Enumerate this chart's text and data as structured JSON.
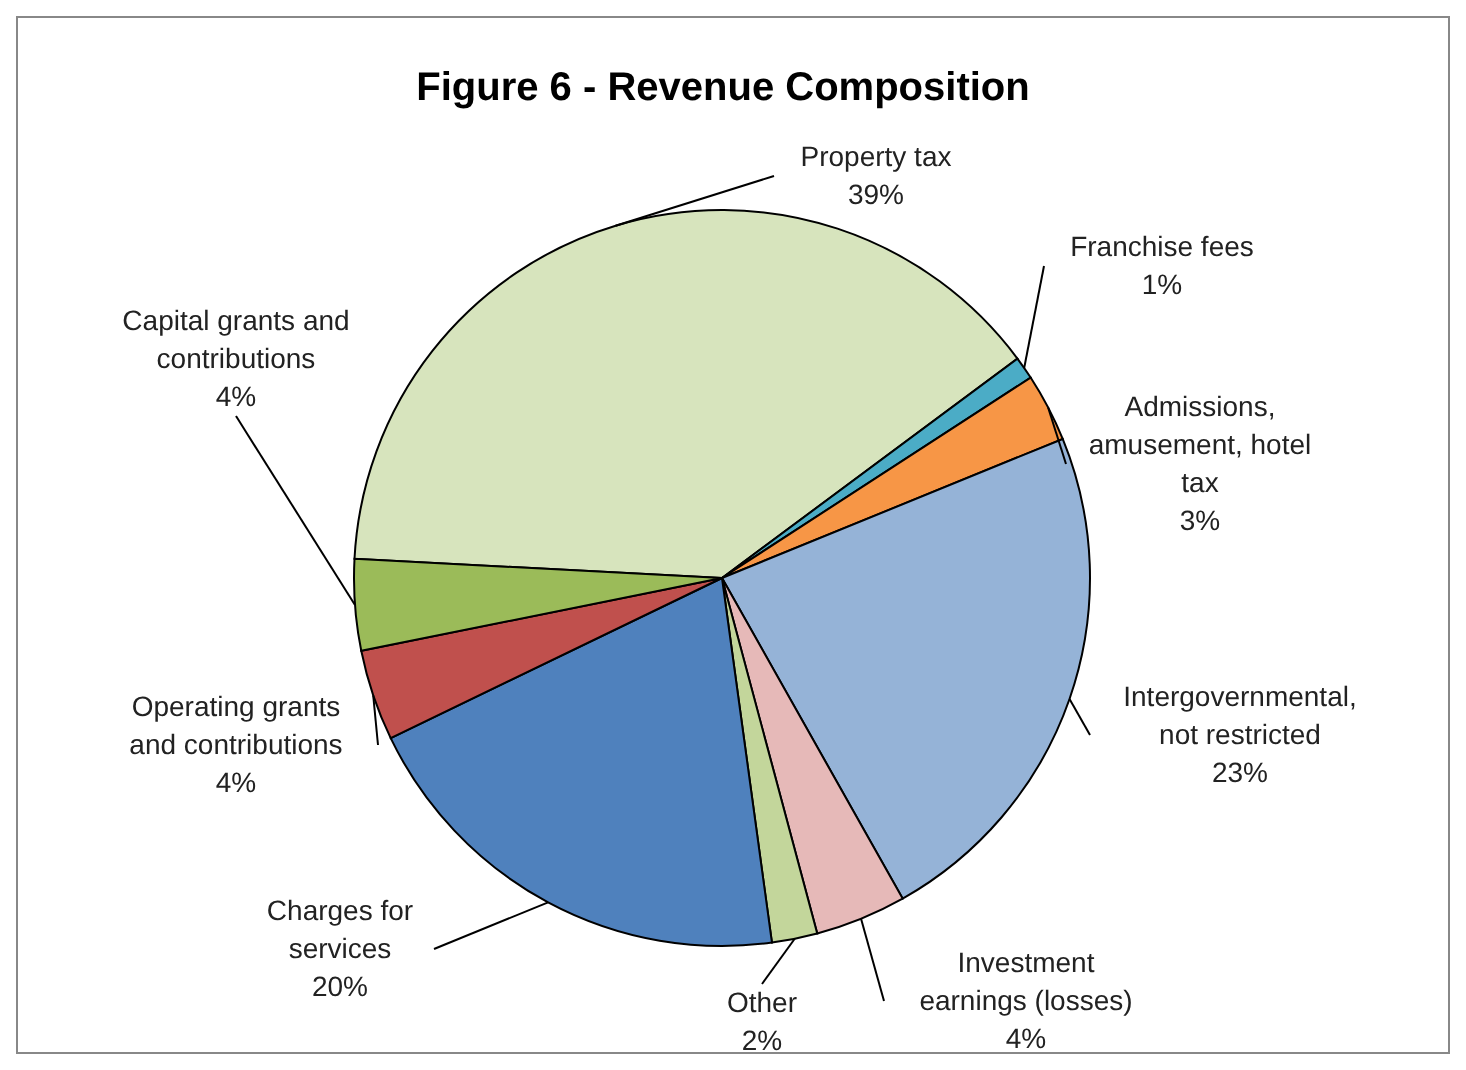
{
  "chart_data": {
    "type": "pie",
    "title": "Figure 6 - Revenue Composition",
    "categories": [
      "Property tax",
      "Franchise fees",
      "Admissions, amusement, hotel tax",
      "Intergovernmental, not restricted",
      "Investment earnings (losses)",
      "Other",
      "Charges for services",
      "Operating grants and contributions",
      "Capital grants and contributions"
    ],
    "values": [
      39,
      1,
      3,
      23,
      4,
      2,
      20,
      4,
      4
    ],
    "colors": [
      "#d7e4bd",
      "#4bacc6",
      "#f79646",
      "#95b3d7",
      "#e6b9b8",
      "#c3d69b",
      "#4f81bd",
      "#c0504d",
      "#9bbb59"
    ],
    "value_labels": [
      "39%",
      "1%",
      "3%",
      "23%",
      "4%",
      "2%",
      "20%",
      "4%",
      "4%"
    ]
  }
}
